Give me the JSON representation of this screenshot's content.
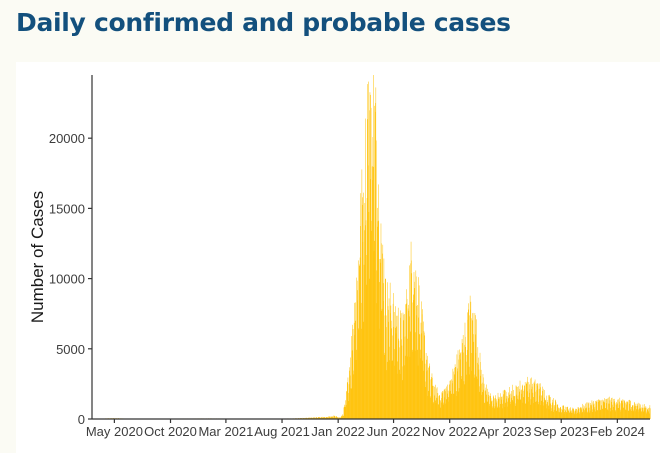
{
  "title": "Daily confirmed and probable cases",
  "colors": {
    "title": "#13507d",
    "bars": "#ffc000",
    "axis": "#333333",
    "background": "#fbfbf4"
  },
  "chart_data": {
    "type": "bar",
    "title": "Daily confirmed and probable cases",
    "xlabel": "",
    "ylabel": "Number of Cases",
    "x_tick_labels": [
      "May 2020",
      "Oct 2020",
      "Mar 2021",
      "Aug 2021",
      "Jan 2022",
      "Jun 2022",
      "Nov 2022",
      "Apr 2023",
      "Sep 2023",
      "Feb 2024"
    ],
    "x_tick_dates": [
      "2020-05-01",
      "2020-10-01",
      "2021-03-01",
      "2021-08-01",
      "2022-01-01",
      "2022-06-01",
      "2022-11-01",
      "2023-04-01",
      "2023-09-01",
      "2024-02-01"
    ],
    "xlim": [
      "2020-03-01",
      "2024-04-30"
    ],
    "y_ticks": [
      0,
      5000,
      10000,
      15000,
      20000
    ],
    "ylim": [
      0,
      24500
    ],
    "grid": false,
    "legend": "none",
    "series": [
      {
        "values_approx_daily": [
          [
            "2020-03-01",
            10
          ],
          [
            "2020-05-01",
            60
          ],
          [
            "2020-06-01",
            30
          ],
          [
            "2020-10-01",
            30
          ],
          [
            "2021-01-01",
            40
          ],
          [
            "2021-06-01",
            20
          ],
          [
            "2021-09-01",
            40
          ],
          [
            "2021-12-01",
            150
          ],
          [
            "2021-12-20",
            220
          ],
          [
            "2022-01-05",
            100
          ],
          [
            "2022-01-12",
            250
          ],
          [
            "2022-01-20",
            1200
          ],
          [
            "2022-02-01",
            4000
          ],
          [
            "2022-02-20",
            10000
          ],
          [
            "2022-03-05",
            15500
          ],
          [
            "2022-03-15",
            19000
          ],
          [
            "2022-03-25",
            24300
          ],
          [
            "2022-04-05",
            23500
          ],
          [
            "2022-04-15",
            21000
          ],
          [
            "2022-04-28",
            14000
          ],
          [
            "2022-05-10",
            9000
          ],
          [
            "2022-05-25",
            8500
          ],
          [
            "2022-06-10",
            7500
          ],
          [
            "2022-06-25",
            6500
          ],
          [
            "2022-07-10",
            9500
          ],
          [
            "2022-07-20",
            11800
          ],
          [
            "2022-08-01",
            10500
          ],
          [
            "2022-08-15",
            7500
          ],
          [
            "2022-09-01",
            4000
          ],
          [
            "2022-09-20",
            2200
          ],
          [
            "2022-10-05",
            1800
          ],
          [
            "2022-10-20",
            2200
          ],
          [
            "2022-11-05",
            3000
          ],
          [
            "2022-11-25",
            4500
          ],
          [
            "2022-12-15",
            6500
          ],
          [
            "2022-12-28",
            8200
          ],
          [
            "2023-01-10",
            6800
          ],
          [
            "2023-01-25",
            3500
          ],
          [
            "2023-02-10",
            2000
          ],
          [
            "2023-03-01",
            1500
          ],
          [
            "2023-04-01",
            1900
          ],
          [
            "2023-05-01",
            2300
          ],
          [
            "2023-06-01",
            2700
          ],
          [
            "2023-07-01",
            2400
          ],
          [
            "2023-08-01",
            1500
          ],
          [
            "2023-09-01",
            900
          ],
          [
            "2023-10-01",
            700
          ],
          [
            "2023-11-15",
            1100
          ],
          [
            "2023-12-15",
            1300
          ],
          [
            "2024-01-15",
            1400
          ],
          [
            "2024-02-15",
            1300
          ],
          [
            "2024-03-15",
            1200
          ],
          [
            "2024-04-20",
            900
          ]
        ]
      }
    ]
  }
}
